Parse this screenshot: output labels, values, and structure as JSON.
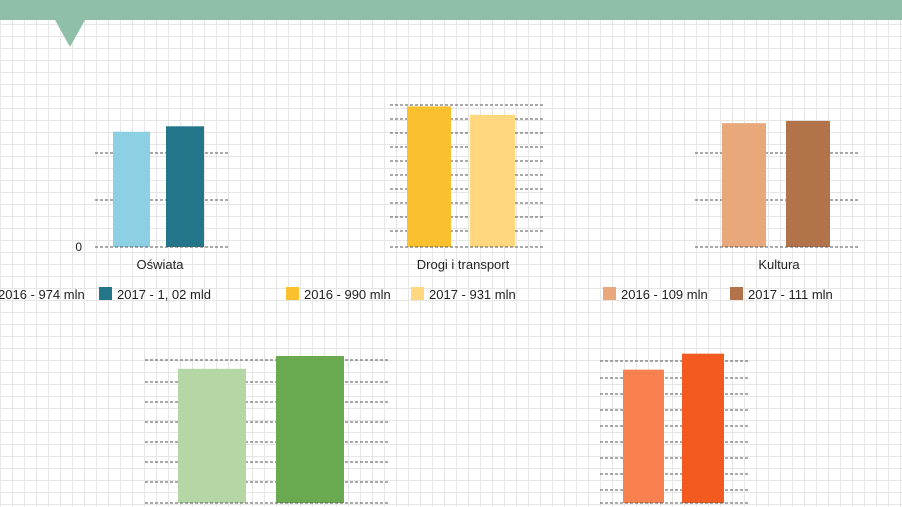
{
  "chart_data": [
    {
      "type": "bar",
      "categories": [
        "Oświata"
      ],
      "zero_label": "0",
      "series": [
        {
          "name": "2016 - 974 mln",
          "values": [
            974
          ],
          "color": "#8dd0e3"
        },
        {
          "name": "2017 - 1, 02 mld",
          "values": [
            1020
          ],
          "color": "#23758a"
        }
      ],
      "ylim": [
        0,
        1200
      ],
      "legend": "bottom"
    },
    {
      "type": "bar",
      "categories": [
        "Drogi i transport"
      ],
      "series": [
        {
          "name": "2016 - 990 mln",
          "values": [
            990
          ],
          "color": "#fbc02d"
        },
        {
          "name": "2017 - 931 mln",
          "values": [
            931
          ],
          "color": "#ffd77e"
        }
      ],
      "ylim": [
        0,
        1000
      ],
      "legend": "bottom"
    },
    {
      "type": "bar",
      "categories": [
        "Kultura"
      ],
      "series": [
        {
          "name": "2016 - 109 mln",
          "values": [
            109
          ],
          "color": "#e9a77c"
        },
        {
          "name": "2017 - 111 mln",
          "values": [
            111
          ],
          "color": "#b3734a"
        }
      ],
      "ylim": [
        0,
        125
      ],
      "legend": "bottom"
    },
    {
      "type": "bar",
      "categories": [
        ""
      ],
      "series": [
        {
          "values": [
            115
          ],
          "color": "#b5d7a5"
        },
        {
          "values": [
            126
          ],
          "color": "#69a950"
        }
      ],
      "ylim": [
        0,
        150
      ]
    },
    {
      "type": "bar",
      "categories": [
        ""
      ],
      "series": [
        {
          "values": [
            125
          ],
          "color": "#f9814f"
        },
        {
          "values": [
            140
          ],
          "color": "#f25a20"
        }
      ],
      "ylim": [
        0,
        150
      ]
    }
  ]
}
